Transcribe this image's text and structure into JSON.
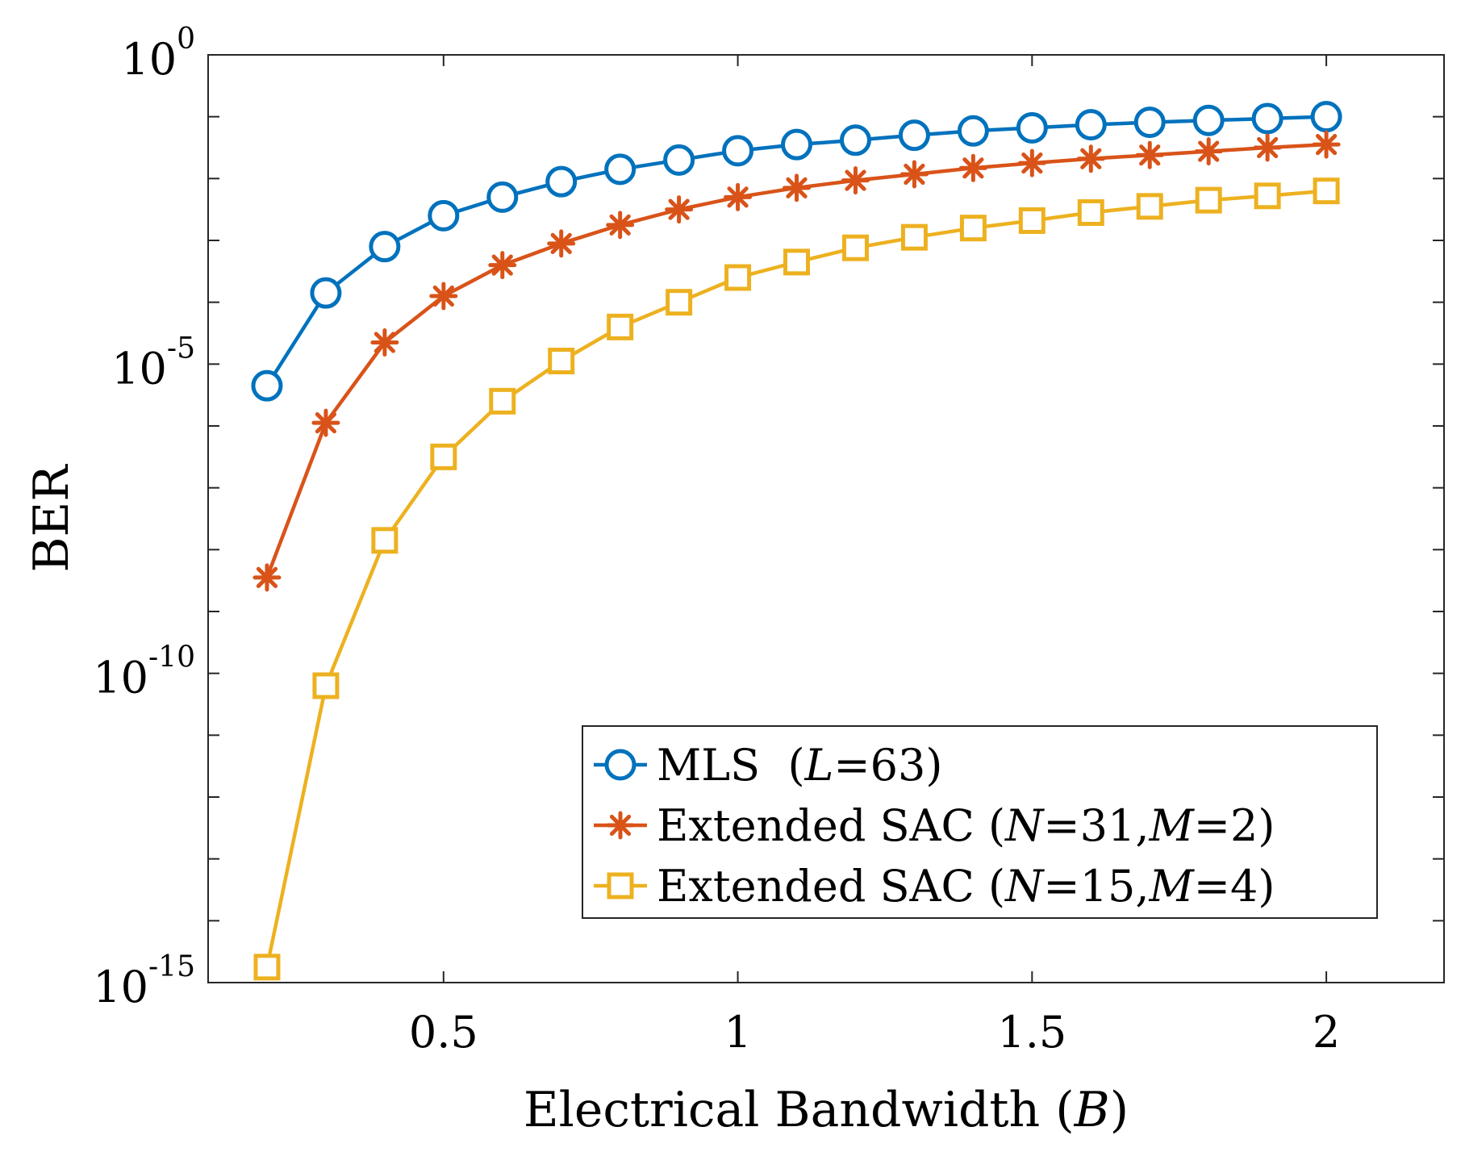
{
  "chart_data": {
    "type": "line",
    "title": "",
    "xlabel": {
      "text": "Electrical Bandwidth (",
      "var": "B",
      "suffix": ")"
    },
    "ylabel": "BER",
    "yscale": "log",
    "xlim": [
      0.1,
      2.2
    ],
    "ylim_exponent": [
      -15,
      0
    ],
    "x_ticks": [
      0.5,
      1,
      1.5,
      2
    ],
    "x_tick_labels": [
      "0.5",
      "1",
      "1.5",
      "2"
    ],
    "y_ticks_exponent": [
      -15,
      -10,
      -5,
      0
    ],
    "y_tick_base": "10",
    "y_tick_exponents": [
      "-15",
      "-10",
      "-5",
      "0"
    ],
    "legend_position": "bottom-right",
    "x": [
      0.2,
      0.3,
      0.4,
      0.5,
      0.6,
      0.7,
      0.8,
      0.9,
      1.0,
      1.1,
      1.2,
      1.3,
      1.4,
      1.5,
      1.6,
      1.7,
      1.8,
      1.9,
      2.0
    ],
    "series": [
      {
        "name": "MLS",
        "legend": {
          "pre": "MLS  (",
          "v1": "L",
          "m1": "=63)",
          "v2": "",
          "m2": ""
        },
        "color": "#0072BD",
        "marker": "circle",
        "log10_values": [
          -5.35,
          -3.85,
          -3.1,
          -2.6,
          -2.3,
          -2.05,
          -1.85,
          -1.7,
          -1.55,
          -1.45,
          -1.38,
          -1.3,
          -1.23,
          -1.18,
          -1.13,
          -1.09,
          -1.06,
          -1.03,
          -1.0
        ]
      },
      {
        "name": "Extended SAC (N=31,M=2)",
        "legend": {
          "pre": "Extended SAC (",
          "v1": "N",
          "m1": "=31,",
          "v2": "M",
          "m2": "=2)"
        },
        "color": "#D95319",
        "marker": "asterisk",
        "log10_values": [
          -8.45,
          -5.95,
          -4.65,
          -3.9,
          -3.4,
          -3.05,
          -2.75,
          -2.5,
          -2.3,
          -2.15,
          -2.03,
          -1.93,
          -1.83,
          -1.75,
          -1.68,
          -1.62,
          -1.56,
          -1.5,
          -1.45
        ]
      },
      {
        "name": "Extended SAC (N=15,M=4)",
        "legend": {
          "pre": "Extended SAC (",
          "v1": "N",
          "m1": "=15,",
          "v2": "M",
          "m2": "=4)"
        },
        "color": "#EDB120",
        "marker": "square",
        "log10_values": [
          -14.75,
          -10.2,
          -7.85,
          -6.5,
          -5.6,
          -4.95,
          -4.4,
          -4.0,
          -3.6,
          -3.35,
          -3.12,
          -2.95,
          -2.8,
          -2.68,
          -2.55,
          -2.45,
          -2.35,
          -2.28,
          -2.2
        ]
      }
    ]
  }
}
